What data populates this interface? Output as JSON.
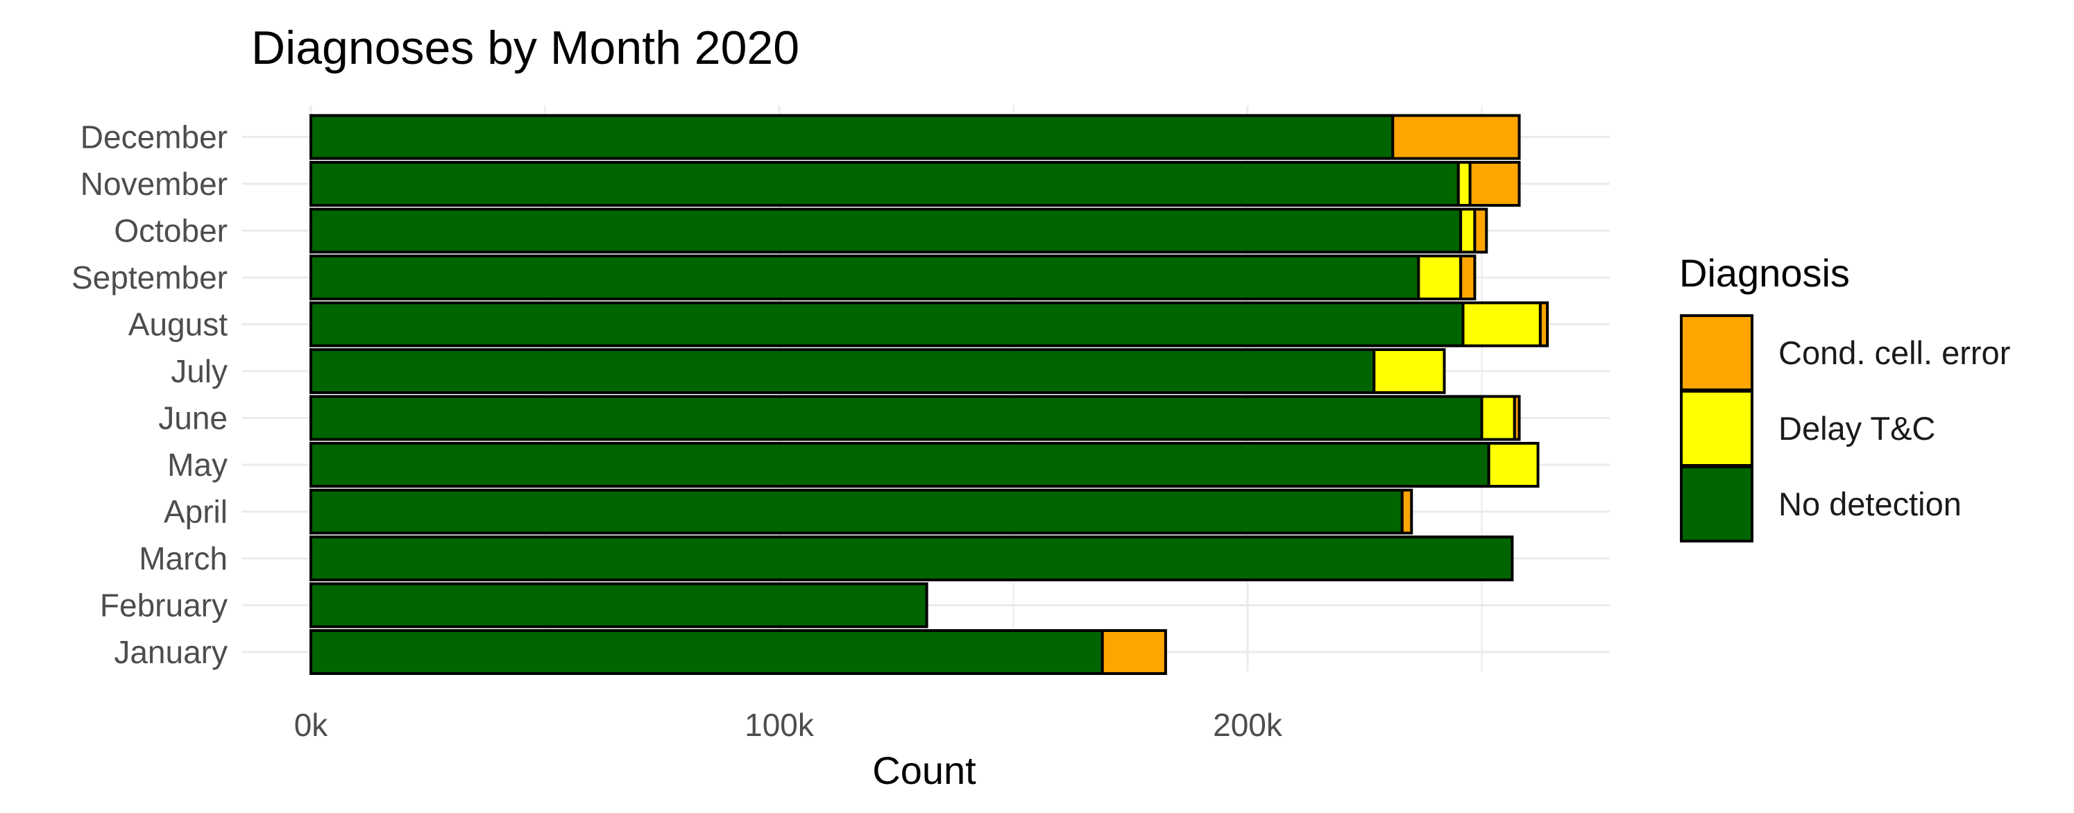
{
  "chart_data": {
    "type": "bar",
    "orientation": "horizontal",
    "stacked": true,
    "title": "Diagnoses by Month 2020",
    "xlabel": "Count",
    "ylabel": "",
    "xlim": [
      0,
      276000
    ],
    "x_ticks": [
      0,
      100000,
      200000
    ],
    "x_tick_labels": [
      "0k",
      "100k",
      "200k"
    ],
    "grid": true,
    "legend_position": "right",
    "legend_title": "Diagnosis",
    "categories": [
      "January",
      "February",
      "March",
      "April",
      "May",
      "June",
      "July",
      "August",
      "September",
      "October",
      "November",
      "December"
    ],
    "series": [
      {
        "name": "No detection",
        "color": "#006400",
        "values": [
          169000,
          131500,
          256500,
          233000,
          251500,
          250000,
          227000,
          246000,
          236500,
          245500,
          245000,
          231000
        ]
      },
      {
        "name": "Delay T&C",
        "color": "#ffff00",
        "values": [
          0,
          0,
          0,
          0,
          10500,
          7000,
          15000,
          16500,
          9000,
          3000,
          2500,
          0
        ]
      },
      {
        "name": "Cond. cell. error",
        "color": "#ffa500",
        "values": [
          13500,
          0,
          0,
          2000,
          0,
          1000,
          0,
          1500,
          3000,
          2500,
          10500,
          27000
        ]
      }
    ],
    "legend_order": [
      "Cond. cell. error",
      "Delay T&C",
      "No detection"
    ]
  }
}
